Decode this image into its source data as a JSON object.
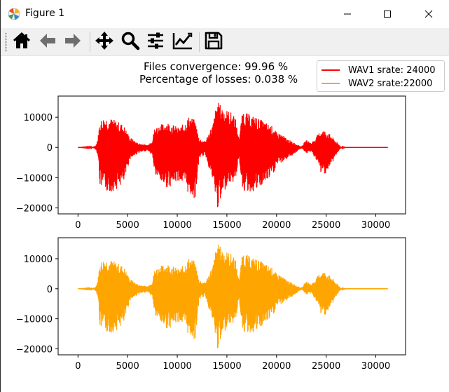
{
  "window": {
    "title": "Figure 1",
    "app_icon": "matplotlib-icon",
    "controls": [
      "minimize-icon",
      "maximize-icon",
      "close-icon"
    ]
  },
  "toolbar": {
    "tools": [
      {
        "name": "home-icon"
      },
      {
        "name": "back-arrow-icon"
      },
      {
        "name": "forward-arrow-icon"
      },
      {
        "name": "pan-icon"
      },
      {
        "name": "zoom-icon"
      },
      {
        "name": "subplots-config-icon"
      },
      {
        "name": "edit-axis-icon"
      },
      {
        "name": "save-icon"
      }
    ]
  },
  "figure": {
    "line1": "Files convergence: 99.96 %",
    "line2": "Percentage of losses: 0.038 %"
  },
  "legend": [
    {
      "label": "WAV1 srate: 24000",
      "color": "#ff0000"
    },
    {
      "label": "WAV2 srate:22000",
      "color": "#ffa500"
    }
  ],
  "chart_data": [
    {
      "type": "line",
      "series": [
        {
          "name": "WAV1 srate: 24000",
          "color": "#ff0000"
        }
      ],
      "xlim": [
        -2000,
        33000
      ],
      "ylim": [
        -22000,
        17000
      ],
      "xticks": [
        0,
        5000,
        10000,
        15000,
        20000,
        25000,
        30000
      ],
      "xtick_labels": [
        "0",
        "5000",
        "10000",
        "15000",
        "20000",
        "25000",
        "30000"
      ],
      "yticks": [
        10000,
        0,
        -10000,
        -20000
      ],
      "ytick_labels": [
        "10000",
        "0",
        "−10000",
        "−20000"
      ],
      "envelope": [
        [
          0,
          0
        ],
        [
          1500,
          200
        ],
        [
          1800,
          800
        ],
        [
          2000,
          3000
        ],
        [
          2200,
          9000
        ],
        [
          2600,
          10000
        ],
        [
          3200,
          9800
        ],
        [
          3800,
          9000
        ],
        [
          4600,
          7500
        ],
        [
          5200,
          3500
        ],
        [
          6000,
          1500
        ],
        [
          7000,
          800
        ],
        [
          7500,
          2500
        ],
        [
          7700,
          6500
        ],
        [
          8200,
          7500
        ],
        [
          9000,
          8500
        ],
        [
          10200,
          6500
        ],
        [
          10800,
          8500
        ],
        [
          11200,
          10500
        ],
        [
          11800,
          9000
        ],
        [
          12200,
          3000
        ],
        [
          12800,
          2000
        ],
        [
          13200,
          5000
        ],
        [
          13600,
          8000
        ],
        [
          14000,
          15500
        ],
        [
          14400,
          14000
        ],
        [
          15000,
          12500
        ],
        [
          15800,
          11000
        ],
        [
          16200,
          3000
        ],
        [
          16600,
          12500
        ],
        [
          17200,
          11000
        ],
        [
          18000,
          10000
        ],
        [
          19600,
          7000
        ],
        [
          20000,
          5000
        ],
        [
          20500,
          4500
        ],
        [
          21000,
          3000
        ],
        [
          21800,
          1500
        ],
        [
          22500,
          300
        ],
        [
          23000,
          2500
        ],
        [
          23500,
          1500
        ],
        [
          24000,
          3500
        ],
        [
          24500,
          6000
        ],
        [
          25000,
          5500
        ],
        [
          25500,
          4000
        ],
        [
          26000,
          2000
        ],
        [
          26500,
          200
        ],
        [
          27000,
          0
        ],
        [
          31200,
          0
        ]
      ],
      "envelope_negative": [
        [
          0,
          0
        ],
        [
          1500,
          -200
        ],
        [
          1800,
          -800
        ],
        [
          2000,
          -3000
        ],
        [
          2200,
          -13000
        ],
        [
          2600,
          -14500
        ],
        [
          3200,
          -15000
        ],
        [
          3800,
          -14000
        ],
        [
          4600,
          -12000
        ],
        [
          5200,
          -4000
        ],
        [
          6000,
          -2000
        ],
        [
          7000,
          -1000
        ],
        [
          7500,
          -3000
        ],
        [
          7700,
          -9000
        ],
        [
          8200,
          -11500
        ],
        [
          9000,
          -13500
        ],
        [
          10200,
          -11000
        ],
        [
          10800,
          -13500
        ],
        [
          11200,
          -16000
        ],
        [
          11800,
          -17000
        ],
        [
          12200,
          -3500
        ],
        [
          12800,
          -2500
        ],
        [
          13200,
          -7000
        ],
        [
          13600,
          -12000
        ],
        [
          14000,
          -20500
        ],
        [
          14400,
          -18500
        ],
        [
          15000,
          -12000
        ],
        [
          15800,
          -11500
        ],
        [
          16200,
          -3500
        ],
        [
          16600,
          -14500
        ],
        [
          17200,
          -15000
        ],
        [
          18000,
          -14500
        ],
        [
          19600,
          -9500
        ],
        [
          20000,
          -6000
        ],
        [
          20500,
          -5000
        ],
        [
          21000,
          -4000
        ],
        [
          21800,
          -2000
        ],
        [
          22500,
          -300
        ],
        [
          23000,
          -2000
        ],
        [
          23500,
          -1500
        ],
        [
          24000,
          -4500
        ],
        [
          24500,
          -9000
        ],
        [
          25000,
          -8500
        ],
        [
          25500,
          -6000
        ],
        [
          26000,
          -2500
        ],
        [
          26500,
          -200
        ],
        [
          27000,
          0
        ],
        [
          31200,
          0
        ]
      ]
    },
    {
      "type": "line",
      "series": [
        {
          "name": "WAV2 srate:22000",
          "color": "#ffa500"
        }
      ],
      "xlim": [
        -2000,
        33000
      ],
      "ylim": [
        -22000,
        17000
      ],
      "xticks": [
        0,
        5000,
        10000,
        15000,
        20000,
        25000,
        30000
      ],
      "xtick_labels": [
        "0",
        "5000",
        "10000",
        "15000",
        "20000",
        "25000",
        "30000"
      ],
      "yticks": [
        10000,
        0,
        -10000,
        -20000
      ],
      "ytick_labels": [
        "10000",
        "0",
        "−10000",
        "−20000"
      ],
      "envelope": [
        [
          0,
          0
        ],
        [
          1500,
          200
        ],
        [
          1800,
          800
        ],
        [
          2000,
          3000
        ],
        [
          2200,
          9000
        ],
        [
          2600,
          10000
        ],
        [
          3200,
          9800
        ],
        [
          3800,
          9000
        ],
        [
          4600,
          7500
        ],
        [
          5200,
          3500
        ],
        [
          6000,
          1500
        ],
        [
          7000,
          800
        ],
        [
          7500,
          2500
        ],
        [
          7700,
          6500
        ],
        [
          8200,
          7500
        ],
        [
          9000,
          8500
        ],
        [
          10200,
          6500
        ],
        [
          10800,
          8500
        ],
        [
          11200,
          10500
        ],
        [
          11800,
          9000
        ],
        [
          12200,
          3000
        ],
        [
          12800,
          2000
        ],
        [
          13200,
          5000
        ],
        [
          13600,
          8000
        ],
        [
          14000,
          15500
        ],
        [
          14400,
          14000
        ],
        [
          15000,
          12500
        ],
        [
          15800,
          11000
        ],
        [
          16200,
          3000
        ],
        [
          16600,
          12500
        ],
        [
          17200,
          11000
        ],
        [
          18000,
          10000
        ],
        [
          19600,
          7000
        ],
        [
          20000,
          5000
        ],
        [
          20500,
          4500
        ],
        [
          21000,
          3000
        ],
        [
          21800,
          1500
        ],
        [
          22500,
          300
        ],
        [
          23000,
          2500
        ],
        [
          23500,
          1500
        ],
        [
          24000,
          3500
        ],
        [
          24500,
          6000
        ],
        [
          25000,
          5500
        ],
        [
          25500,
          4000
        ],
        [
          26000,
          2000
        ],
        [
          26500,
          200
        ],
        [
          27000,
          0
        ],
        [
          31200,
          0
        ]
      ],
      "envelope_negative": [
        [
          0,
          0
        ],
        [
          1500,
          -200
        ],
        [
          1800,
          -800
        ],
        [
          2000,
          -3000
        ],
        [
          2200,
          -13000
        ],
        [
          2600,
          -14500
        ],
        [
          3200,
          -15000
        ],
        [
          3800,
          -14000
        ],
        [
          4600,
          -12000
        ],
        [
          5200,
          -4000
        ],
        [
          6000,
          -2000
        ],
        [
          7000,
          -1000
        ],
        [
          7500,
          -3000
        ],
        [
          7700,
          -9000
        ],
        [
          8200,
          -11500
        ],
        [
          9000,
          -13500
        ],
        [
          10200,
          -11000
        ],
        [
          10800,
          -13500
        ],
        [
          11200,
          -16000
        ],
        [
          11800,
          -17000
        ],
        [
          12200,
          -3500
        ],
        [
          12800,
          -2500
        ],
        [
          13200,
          -7000
        ],
        [
          13600,
          -12000
        ],
        [
          14000,
          -20500
        ],
        [
          14400,
          -18500
        ],
        [
          15000,
          -12000
        ],
        [
          15800,
          -11500
        ],
        [
          16200,
          -3500
        ],
        [
          16600,
          -14500
        ],
        [
          17200,
          -15000
        ],
        [
          18000,
          -14500
        ],
        [
          19600,
          -9500
        ],
        [
          20000,
          -6000
        ],
        [
          20500,
          -5000
        ],
        [
          21000,
          -4000
        ],
        [
          21800,
          -2000
        ],
        [
          22500,
          -300
        ],
        [
          23000,
          -2000
        ],
        [
          23500,
          -1500
        ],
        [
          24000,
          -4500
        ],
        [
          24500,
          -9000
        ],
        [
          25000,
          -8500
        ],
        [
          25500,
          -6000
        ],
        [
          26000,
          -2500
        ],
        [
          26500,
          -200
        ],
        [
          27000,
          0
        ],
        [
          31200,
          0
        ]
      ]
    }
  ]
}
